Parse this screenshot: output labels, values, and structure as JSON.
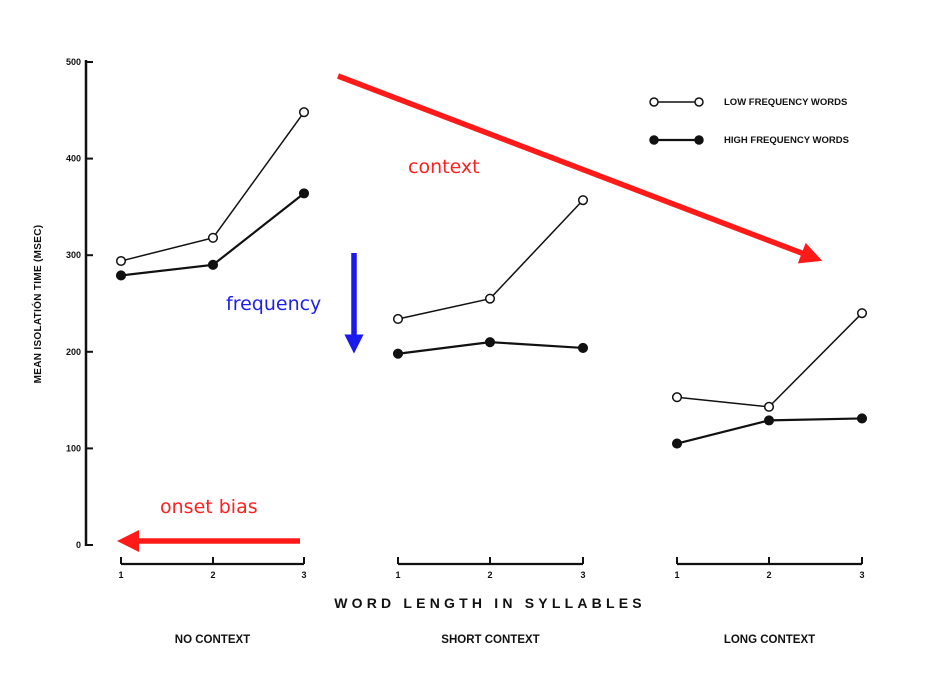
{
  "chart_data": {
    "type": "line",
    "ylabel": "MEAN ISOLATIÓN TIME (MSEC)",
    "xlabel": "WORD LENGTH IN SYLLABLES",
    "ylim": [
      0,
      500
    ],
    "yticks": [
      "0",
      "100",
      "200",
      "300",
      "400",
      "500"
    ],
    "xticks": [
      "1",
      "2",
      "3"
    ],
    "grid": false,
    "legend_position": "top-right",
    "legend": [
      {
        "name": "LOW FREQUENCY WORDS",
        "marker": "open-circle"
      },
      {
        "name": "HIGH FREQUENCY WORDS",
        "marker": "filled-circle"
      }
    ],
    "panels": [
      {
        "label": "NO CONTEXT",
        "x": [
          1,
          2,
          3
        ],
        "series": [
          {
            "name": "LOW FREQUENCY WORDS",
            "values": [
              294,
              318,
              448
            ]
          },
          {
            "name": "HIGH FREQUENCY WORDS",
            "values": [
              279,
              290,
              364
            ]
          }
        ]
      },
      {
        "label": "SHORT CONTEXT",
        "x": [
          1,
          2,
          3
        ],
        "series": [
          {
            "name": "LOW FREQUENCY WORDS",
            "values": [
              234,
              255,
              357
            ]
          },
          {
            "name": "HIGH FREQUENCY WORDS",
            "values": [
              198,
              210,
              204
            ]
          }
        ]
      },
      {
        "label": "LONG CONTEXT",
        "x": [
          1,
          2,
          3
        ],
        "series": [
          {
            "name": "LOW FREQUENCY WORDS",
            "values": [
              153,
              143,
              240
            ]
          },
          {
            "name": "HIGH FREQUENCY WORDS",
            "values": [
              105,
              129,
              131
            ]
          }
        ]
      }
    ],
    "annotations": [
      {
        "text": "context",
        "color": "#ff2020"
      },
      {
        "text": "frequency",
        "color": "#2020ee"
      },
      {
        "text": "onset bias",
        "color": "#ff2020"
      }
    ]
  }
}
